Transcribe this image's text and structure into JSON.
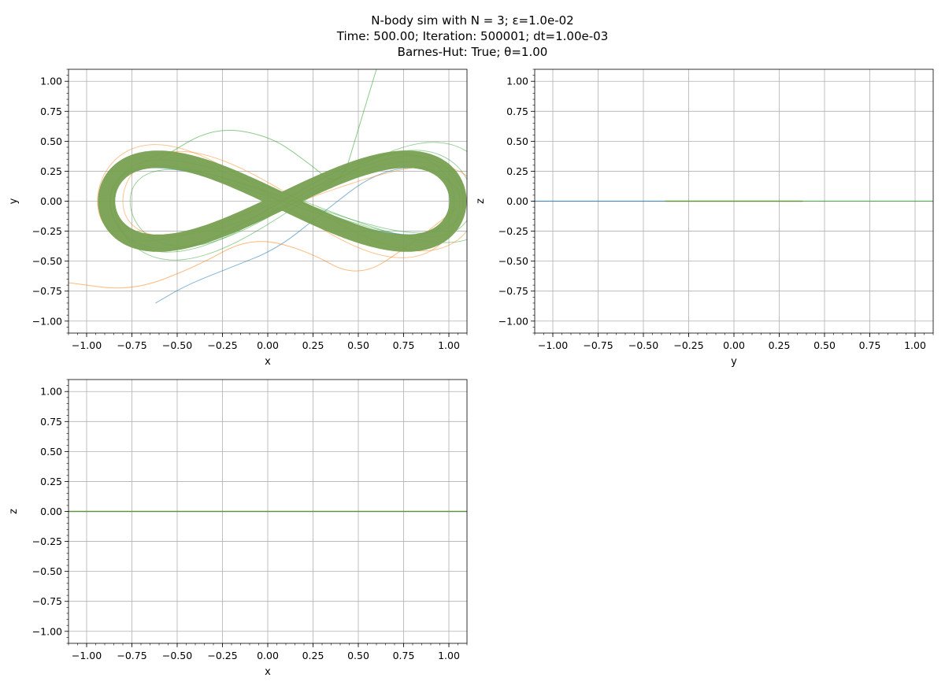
{
  "title_lines": [
    "N-body sim with N = 3;   ε=1.0e-02",
    "Time: 500.00;   Iteration: 500001;   dt=1.00e-03",
    "Barnes-Hut: True;   θ=1.00"
  ],
  "colors": {
    "body1": "#1f77b4",
    "body2": "#ff7f0e",
    "body3": "#2ca02c",
    "band": "#77a050",
    "grid": "#b0b0b0"
  },
  "chart_data": [
    {
      "type": "line",
      "name": "xy-projection",
      "xlabel": "x",
      "ylabel": "y",
      "xlim": [
        -1.1,
        1.1
      ],
      "ylim": [
        -1.1,
        1.1
      ],
      "grid": true,
      "xticks": [
        "−1.00",
        "−0.75",
        "−0.50",
        "−0.25",
        "0.00",
        "0.25",
        "0.50",
        "0.75",
        "1.00"
      ],
      "yticks": [
        "−1.00",
        "−0.75",
        "−0.50",
        "−0.25",
        "0.00",
        "0.25",
        "0.50",
        "0.75",
        "1.00"
      ],
      "figure_eight": {
        "amplitude_x": 0.97,
        "amplitude_y": 0.35,
        "center_x": 0.08
      },
      "series": [
        {
          "values_note": "",
          "x": [
            -0.62,
            -0.45,
            -0.2,
            0.05,
            0.3,
            0.6,
            0.9,
            1.05
          ],
          "y": [
            -0.85,
            -0.7,
            -0.55,
            -0.4,
            -0.1,
            0.25,
            0.3,
            0.1
          ]
        },
        {
          "x": [
            -1.1,
            -0.75,
            -0.4,
            -0.1,
            0.2,
            0.5,
            0.8,
            1.05
          ],
          "y": [
            -0.68,
            -0.75,
            -0.55,
            -0.3,
            -0.4,
            -0.65,
            -0.35,
            -0.05
          ]
        },
        {
          "x": [
            -0.6,
            -0.3,
            0.0,
            0.2,
            0.4,
            0.5,
            0.6
          ],
          "y": [
            0.35,
            0.62,
            0.55,
            0.35,
            0.1,
            0.6,
            1.1
          ]
        }
      ]
    },
    {
      "type": "line",
      "name": "yz-projection",
      "xlabel": "y",
      "ylabel": "z",
      "xlim": [
        -1.1,
        1.1
      ],
      "ylim": [
        -1.1,
        1.1
      ],
      "grid": true,
      "xticks": [
        "−1.00",
        "−0.75",
        "−0.50",
        "−0.25",
        "0.00",
        "0.25",
        "0.50",
        "0.75",
        "1.00"
      ],
      "yticks": [
        "−1.00",
        "−0.75",
        "−0.50",
        "−0.25",
        "0.00",
        "0.25",
        "0.50",
        "0.75",
        "1.00"
      ],
      "lines": [
        {
          "x": [
            -1.1,
            0.38
          ],
          "y": [
            0,
            0
          ]
        },
        {
          "x": [
            -0.38,
            0.38
          ],
          "y": [
            0,
            0
          ]
        },
        {
          "x": [
            -0.38,
            1.1
          ],
          "y": [
            0,
            0
          ]
        }
      ]
    },
    {
      "type": "line",
      "name": "xz-projection",
      "xlabel": "x",
      "ylabel": "z",
      "xlim": [
        -1.1,
        1.1
      ],
      "ylim": [
        -1.1,
        1.1
      ],
      "grid": true,
      "xticks": [
        "−1.00",
        "−0.75",
        "−0.50",
        "−0.25",
        "0.00",
        "0.25",
        "0.50",
        "0.75",
        "1.00"
      ],
      "yticks": [
        "−1.00",
        "−0.75",
        "−0.50",
        "−0.25",
        "0.00",
        "0.25",
        "0.50",
        "0.75",
        "1.00"
      ],
      "lines": [
        {
          "x": [
            -1.1,
            1.1
          ],
          "y": [
            0,
            0
          ]
        },
        {
          "x": [
            -1.1,
            1.1
          ],
          "y": [
            0,
            0
          ]
        },
        {
          "x": [
            -1.1,
            1.1
          ],
          "y": [
            0,
            0
          ]
        }
      ]
    }
  ]
}
